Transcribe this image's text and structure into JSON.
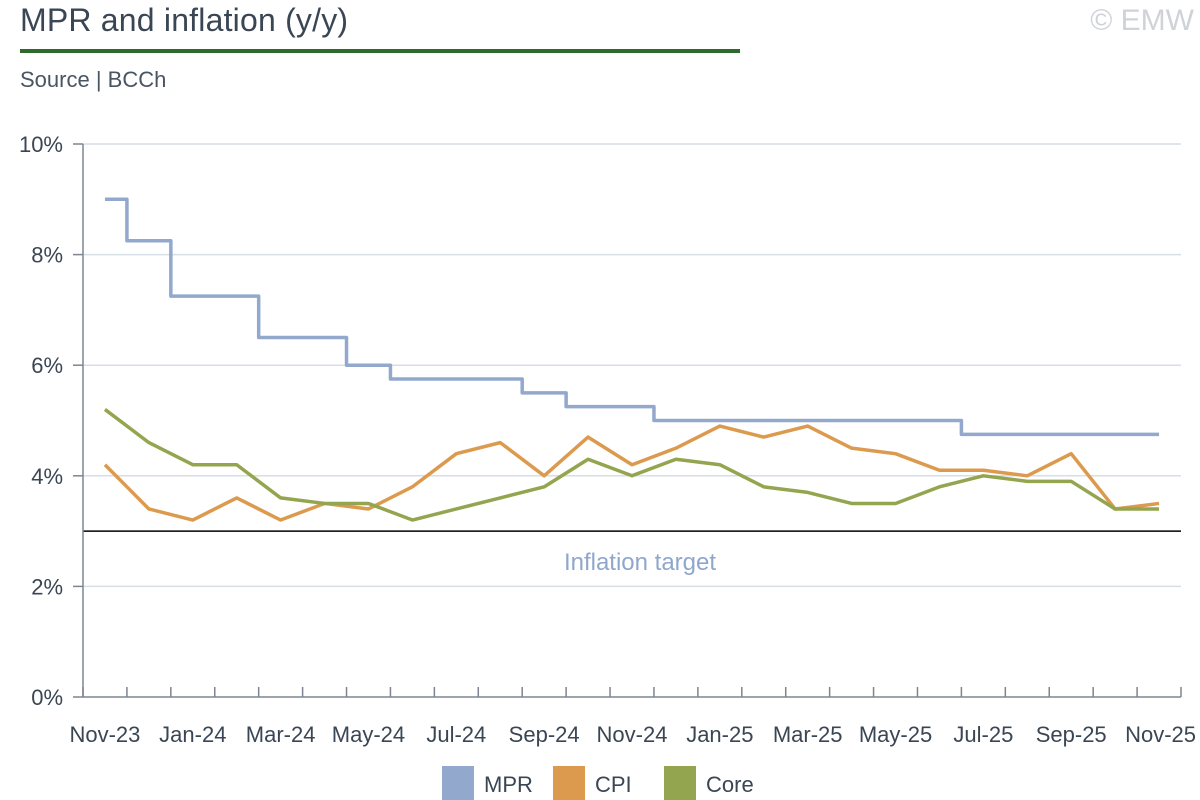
{
  "header": {
    "title": "MPR and inflation (y/y)",
    "source": "Source | BCCh",
    "copyright": "© EMW"
  },
  "colors": {
    "mpr": "#92a8cd",
    "cpi": "#dc9a4e",
    "core": "#93a54e",
    "grid": "#d6dee6",
    "axis": "#7d8590",
    "target": "#000000",
    "annotation": "#8fa7cc"
  },
  "chart_data": {
    "type": "line",
    "title": "MPR and inflation (y/y)",
    "xlabel": "",
    "ylabel": "",
    "ylim": [
      0,
      10
    ],
    "yticks": [
      0,
      2,
      4,
      6,
      8,
      10
    ],
    "ytick_labels": [
      "0%",
      "2%",
      "4%",
      "6%",
      "8%",
      "10%"
    ],
    "grid": true,
    "legend": "bottom",
    "x": [
      "Nov-23",
      "Dec-23",
      "Jan-24",
      "Feb-24",
      "Mar-24",
      "Apr-24",
      "May-24",
      "Jun-24",
      "Jul-24",
      "Aug-24",
      "Sep-24",
      "Oct-24",
      "Nov-24",
      "Dec-24",
      "Jan-25",
      "Feb-25",
      "Mar-25",
      "Apr-25",
      "May-25",
      "Jun-25",
      "Jul-25",
      "Aug-25",
      "Sep-25",
      "Oct-25",
      "Nov-25"
    ],
    "xtick_labels": [
      "Nov-23",
      "Jan-24",
      "Mar-24",
      "May-24",
      "Jul-24",
      "Sep-24",
      "Nov-24",
      "Jan-25",
      "Mar-25",
      "May-25",
      "Jul-25",
      "Sep-25",
      "Nov-25"
    ],
    "series": [
      {
        "name": "MPR",
        "style": "step",
        "values": [
          9.0,
          8.25,
          7.25,
          7.25,
          6.5,
          6.5,
          6.0,
          5.75,
          5.75,
          5.75,
          5.5,
          5.25,
          5.25,
          5.0,
          5.0,
          5.0,
          5.0,
          5.0,
          5.0,
          5.0,
          4.75,
          4.75,
          4.75,
          4.75,
          4.75
        ]
      },
      {
        "name": "CPI",
        "style": "line",
        "values": [
          4.2,
          3.4,
          3.2,
          3.6,
          3.2,
          3.5,
          3.4,
          3.8,
          4.4,
          4.6,
          4.0,
          4.7,
          4.2,
          4.5,
          4.9,
          4.7,
          4.9,
          4.5,
          4.4,
          4.1,
          4.1,
          4.0,
          4.4,
          3.4,
          3.5
        ]
      },
      {
        "name": "Core",
        "style": "line",
        "values": [
          5.2,
          4.6,
          4.2,
          4.2,
          3.6,
          3.5,
          3.5,
          3.2,
          3.4,
          3.6,
          3.8,
          4.3,
          4.0,
          4.3,
          4.2,
          3.8,
          3.7,
          3.5,
          3.5,
          3.8,
          4.0,
          3.9,
          3.9,
          3.4,
          3.4
        ]
      }
    ],
    "reference_lines": [
      {
        "y": 3.0,
        "label": "Inflation target"
      }
    ]
  }
}
